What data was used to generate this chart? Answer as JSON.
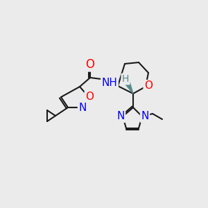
{
  "bg_color": "#ebebeb",
  "bond_color": "#1a1a1a",
  "bond_width": 1.5,
  "atom_colors": {
    "O": "#ff0000",
    "N": "#0000ff",
    "H": "#5a8a8a",
    "C": "#1a1a1a"
  },
  "font_size_atom": 11,
  "font_size_small": 9
}
